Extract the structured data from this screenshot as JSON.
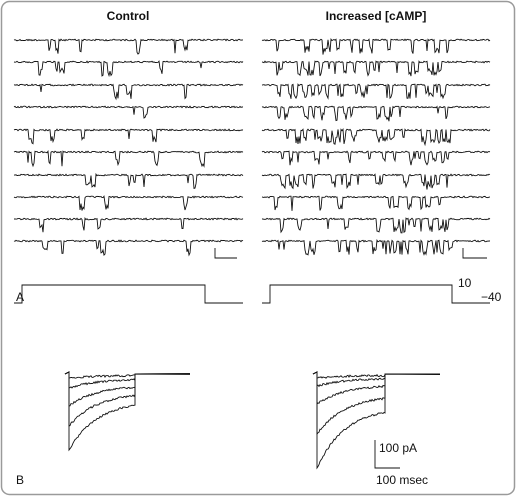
{
  "panel_a": {
    "label": "A",
    "control_title": "Control",
    "camp_title": "Increased [cAMP]",
    "voltage_labels": [
      "10",
      "−40"
    ]
  },
  "panel_b": {
    "label": "B",
    "scale_current": "100 pA",
    "scale_time": "100 msec"
  }
}
